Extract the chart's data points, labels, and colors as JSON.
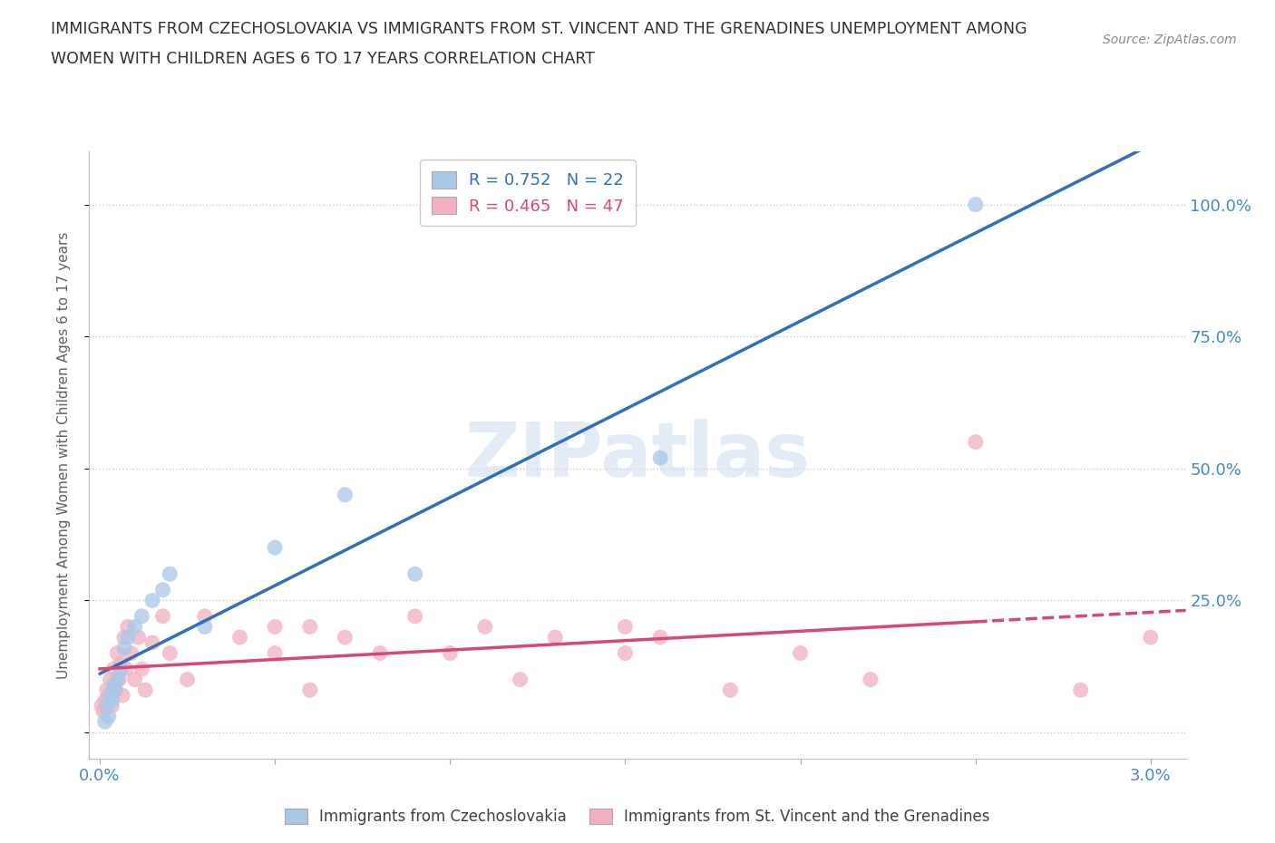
{
  "title_line1": "IMMIGRANTS FROM CZECHOSLOVAKIA VS IMMIGRANTS FROM ST. VINCENT AND THE GRENADINES UNEMPLOYMENT AMONG",
  "title_line2": "WOMEN WITH CHILDREN AGES 6 TO 17 YEARS CORRELATION CHART",
  "source": "Source: ZipAtlas.com",
  "ylabel": "Unemployment Among Women with Children Ages 6 to 17 years",
  "blue_color": "#a8c8e8",
  "pink_color": "#f0b0c0",
  "blue_line_color": "#3070b8",
  "pink_line_color": "#d84870",
  "legend_R1": "0.752",
  "legend_N1": "22",
  "legend_R2": "0.465",
  "legend_N2": "47",
  "legend_label1": "Immigrants from Czechoslovakia",
  "legend_label2": "Immigrants from St. Vincent and the Grenadines",
  "watermark": "ZIPatlas",
  "background_color": "#ffffff",
  "grid_color": "#c8c8d0",
  "title_color": "#303030",
  "tick_label_color": "#4488cc",
  "axis_label_color": "#606060",
  "blue_scatter_x": [
    0.00015,
    0.0002,
    0.00025,
    0.0003,
    0.00035,
    0.0004,
    0.00045,
    0.0005,
    0.0006,
    0.0007,
    0.0008,
    0.001,
    0.0012,
    0.0015,
    0.0018,
    0.002,
    0.003,
    0.005,
    0.007,
    0.009,
    0.016,
    0.025
  ],
  "blue_scatter_y": [
    0.02,
    0.05,
    0.03,
    0.07,
    0.06,
    0.09,
    0.08,
    0.1,
    0.12,
    0.16,
    0.18,
    0.2,
    0.22,
    0.25,
    0.27,
    0.3,
    0.2,
    0.35,
    0.45,
    0.3,
    0.52,
    1.0
  ],
  "pink_scatter_x": [
    5e-05,
    0.0001,
    0.00015,
    0.0002,
    0.00025,
    0.0003,
    0.00035,
    0.0004,
    0.00045,
    0.0005,
    0.00055,
    0.0006,
    0.00065,
    0.0007,
    0.00075,
    0.0008,
    0.0009,
    0.001,
    0.0011,
    0.0012,
    0.0013,
    0.0015,
    0.0018,
    0.002,
    0.0025,
    0.003,
    0.004,
    0.005,
    0.005,
    0.006,
    0.006,
    0.007,
    0.008,
    0.009,
    0.01,
    0.011,
    0.012,
    0.013,
    0.015,
    0.015,
    0.016,
    0.018,
    0.02,
    0.022,
    0.025,
    0.028,
    0.03
  ],
  "pink_scatter_y": [
    0.05,
    0.04,
    0.06,
    0.08,
    0.07,
    0.1,
    0.05,
    0.12,
    0.08,
    0.15,
    0.1,
    0.13,
    0.07,
    0.18,
    0.12,
    0.2,
    0.15,
    0.1,
    0.18,
    0.12,
    0.08,
    0.17,
    0.22,
    0.15,
    0.1,
    0.22,
    0.18,
    0.2,
    0.15,
    0.08,
    0.2,
    0.18,
    0.15,
    0.22,
    0.15,
    0.2,
    0.1,
    0.18,
    0.2,
    0.15,
    0.18,
    0.08,
    0.15,
    0.1,
    0.55,
    0.08,
    0.18
  ]
}
